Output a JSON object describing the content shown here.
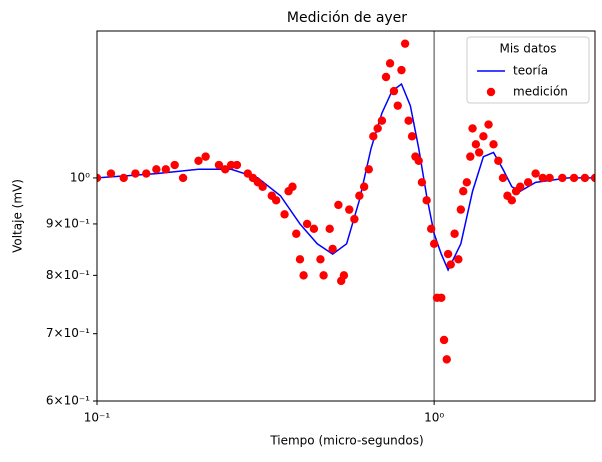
{
  "chart_data": {
    "type": "line",
    "title": "Medición de ayer",
    "x_label": "Tiempo (micro-segundos)",
    "y_label": "Voltaje (mV)",
    "xscale": "log",
    "yscale": "log",
    "xlim": [
      0.1,
      3
    ],
    "ylim": [
      0.6,
      1.4
    ],
    "xticks": [
      {
        "value": 0.1,
        "label": "10⁻¹"
      },
      {
        "value": 1,
        "label": "10⁰"
      }
    ],
    "yticks": [
      {
        "value": 0.6,
        "label": "6×10⁻¹"
      },
      {
        "value": 0.7,
        "label": "7×10⁻¹"
      },
      {
        "value": 0.8,
        "label": "8×10⁻¹"
      },
      {
        "value": 0.9,
        "label": "9×10⁻¹"
      },
      {
        "value": 1,
        "label": "10⁰"
      }
    ],
    "vlines": [
      {
        "x": 1,
        "color": "gray"
      }
    ],
    "legend": "upper right",
    "legend_title": "Mis datos",
    "series": [
      {
        "name": "teoría",
        "color": "blue",
        "kind": "line",
        "x": [
          0.1,
          0.15,
          0.2,
          0.25,
          0.3,
          0.35,
          0.4,
          0.45,
          0.5,
          0.55,
          0.6,
          0.65,
          0.7,
          0.75,
          0.8,
          0.85,
          0.9,
          0.95,
          1.0,
          1.05,
          1.1,
          1.2,
          1.3,
          1.4,
          1.5,
          1.6,
          1.7,
          1.8,
          2.0,
          2.5,
          3.0
        ],
        "values": [
          1.0,
          1.01,
          1.02,
          1.02,
          1.0,
          0.96,
          0.9,
          0.86,
          0.84,
          0.86,
          0.95,
          1.07,
          1.16,
          1.22,
          1.24,
          1.18,
          1.07,
          0.96,
          0.88,
          0.84,
          0.81,
          0.86,
          0.97,
          1.05,
          1.06,
          1.02,
          0.98,
          0.97,
          0.99,
          1.0,
          1.0
        ]
      },
      {
        "name": "medición",
        "color": "red",
        "kind": "scatter",
        "x": [
          0.1,
          0.11,
          0.12,
          0.13,
          0.14,
          0.15,
          0.16,
          0.17,
          0.18,
          0.2,
          0.21,
          0.23,
          0.24,
          0.25,
          0.26,
          0.28,
          0.29,
          0.3,
          0.31,
          0.33,
          0.34,
          0.36,
          0.37,
          0.38,
          0.39,
          0.4,
          0.41,
          0.42,
          0.44,
          0.46,
          0.47,
          0.49,
          0.5,
          0.52,
          0.53,
          0.54,
          0.56,
          0.58,
          0.6,
          0.62,
          0.64,
          0.66,
          0.68,
          0.7,
          0.72,
          0.74,
          0.76,
          0.78,
          0.8,
          0.82,
          0.84,
          0.86,
          0.88,
          0.9,
          0.92,
          0.95,
          0.98,
          1.0,
          1.02,
          1.05,
          1.07,
          1.09,
          1.1,
          1.12,
          1.15,
          1.18,
          1.2,
          1.22,
          1.25,
          1.28,
          1.3,
          1.33,
          1.36,
          1.4,
          1.45,
          1.5,
          1.55,
          1.6,
          1.65,
          1.7,
          1.75,
          1.8,
          1.9,
          2.0,
          2.1,
          2.2,
          2.4,
          2.6,
          2.8,
          3.0
        ],
        "values": [
          1.0,
          1.01,
          1.0,
          1.01,
          1.01,
          1.02,
          1.02,
          1.03,
          1.0,
          1.04,
          1.05,
          1.03,
          1.02,
          1.03,
          1.03,
          1.01,
          1.0,
          0.99,
          0.98,
          0.96,
          0.95,
          0.92,
          0.97,
          0.98,
          0.88,
          0.83,
          0.8,
          0.9,
          0.89,
          0.83,
          0.8,
          0.89,
          0.85,
          0.94,
          0.79,
          0.8,
          0.93,
          0.91,
          0.96,
          0.98,
          1.02,
          1.1,
          1.12,
          1.14,
          1.26,
          1.3,
          1.22,
          1.18,
          1.28,
          1.36,
          1.14,
          1.1,
          1.05,
          1.04,
          0.99,
          0.95,
          0.89,
          0.86,
          0.76,
          0.76,
          0.69,
          0.66,
          0.84,
          0.82,
          0.88,
          0.83,
          0.93,
          0.97,
          0.99,
          1.05,
          1.12,
          1.08,
          1.06,
          1.1,
          1.13,
          1.08,
          1.04,
          1.0,
          0.96,
          0.95,
          0.97,
          0.98,
          0.99,
          1.01,
          1.0,
          1.0,
          1.0,
          1.0,
          1.0,
          1.0
        ]
      }
    ]
  }
}
